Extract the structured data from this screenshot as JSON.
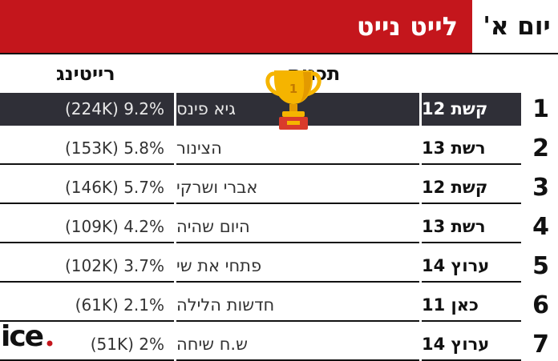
{
  "header": {
    "title": "לייט נייט",
    "day": "יום א'"
  },
  "columns": {
    "show": "תכנית",
    "rating": "רייטינג"
  },
  "trophy": {
    "number": "1"
  },
  "logo": {
    "text": "ice"
  },
  "colors": {
    "title_bg": "#c4161c",
    "highlight_row": "#2f2f37",
    "trophy_gold": "#f5b400",
    "trophy_base": "#d93b2b"
  },
  "rows": [
    {
      "rank": "1",
      "channel": "קשת 12",
      "show": "גיא פינס",
      "rating": "(224K) 9.2%"
    },
    {
      "rank": "2",
      "channel": "רשת 13",
      "show": "הצינור",
      "rating": "(153K) 5.8%"
    },
    {
      "rank": "3",
      "channel": "קשת 12",
      "show": "אברי ושרקי",
      "rating": "(146K) 5.7%"
    },
    {
      "rank": "4",
      "channel": "רשת 13",
      "show": "היום שהיה",
      "rating": "(109K) 4.2%"
    },
    {
      "rank": "5",
      "channel": "ערוץ 14",
      "show": "פתחי את שי",
      "rating": "(102K) 3.7%"
    },
    {
      "rank": "6",
      "channel": "כאן 11",
      "show": "חדשות הלילה",
      "rating": "(61K) 2.1%"
    },
    {
      "rank": "7",
      "channel": "ערוץ 14",
      "show": "ש.ח שיחה",
      "rating": "(51K) 2%"
    }
  ],
  "chart_data": {
    "type": "table",
    "columns": [
      "תכנית",
      "רייטינג"
    ],
    "rows": [
      {
        "rank": 1,
        "channel": "קשת 12",
        "show": "גיא פינס",
        "rating_pct": 9.2,
        "viewers_k": 224
      },
      {
        "rank": 2,
        "channel": "רשת 13",
        "show": "הצינור",
        "rating_pct": 5.8,
        "viewers_k": 153
      },
      {
        "rank": 3,
        "channel": "קשת 12",
        "show": "אברי ושרקי",
        "rating_pct": 5.7,
        "viewers_k": 146
      },
      {
        "rank": 4,
        "channel": "רשת 13",
        "show": "היום שהיה",
        "rating_pct": 4.2,
        "viewers_k": 109
      },
      {
        "rank": 5,
        "channel": "ערוץ 14",
        "show": "פתחי את שי",
        "rating_pct": 3.7,
        "viewers_k": 102
      },
      {
        "rank": 6,
        "channel": "כאן 11",
        "show": "חדשות הלילה",
        "rating_pct": 2.1,
        "viewers_k": 61
      },
      {
        "rank": 7,
        "channel": "ערוץ 14",
        "show": "ש.ח שיחה",
        "rating_pct": 2,
        "viewers_k": 51
      }
    ]
  }
}
